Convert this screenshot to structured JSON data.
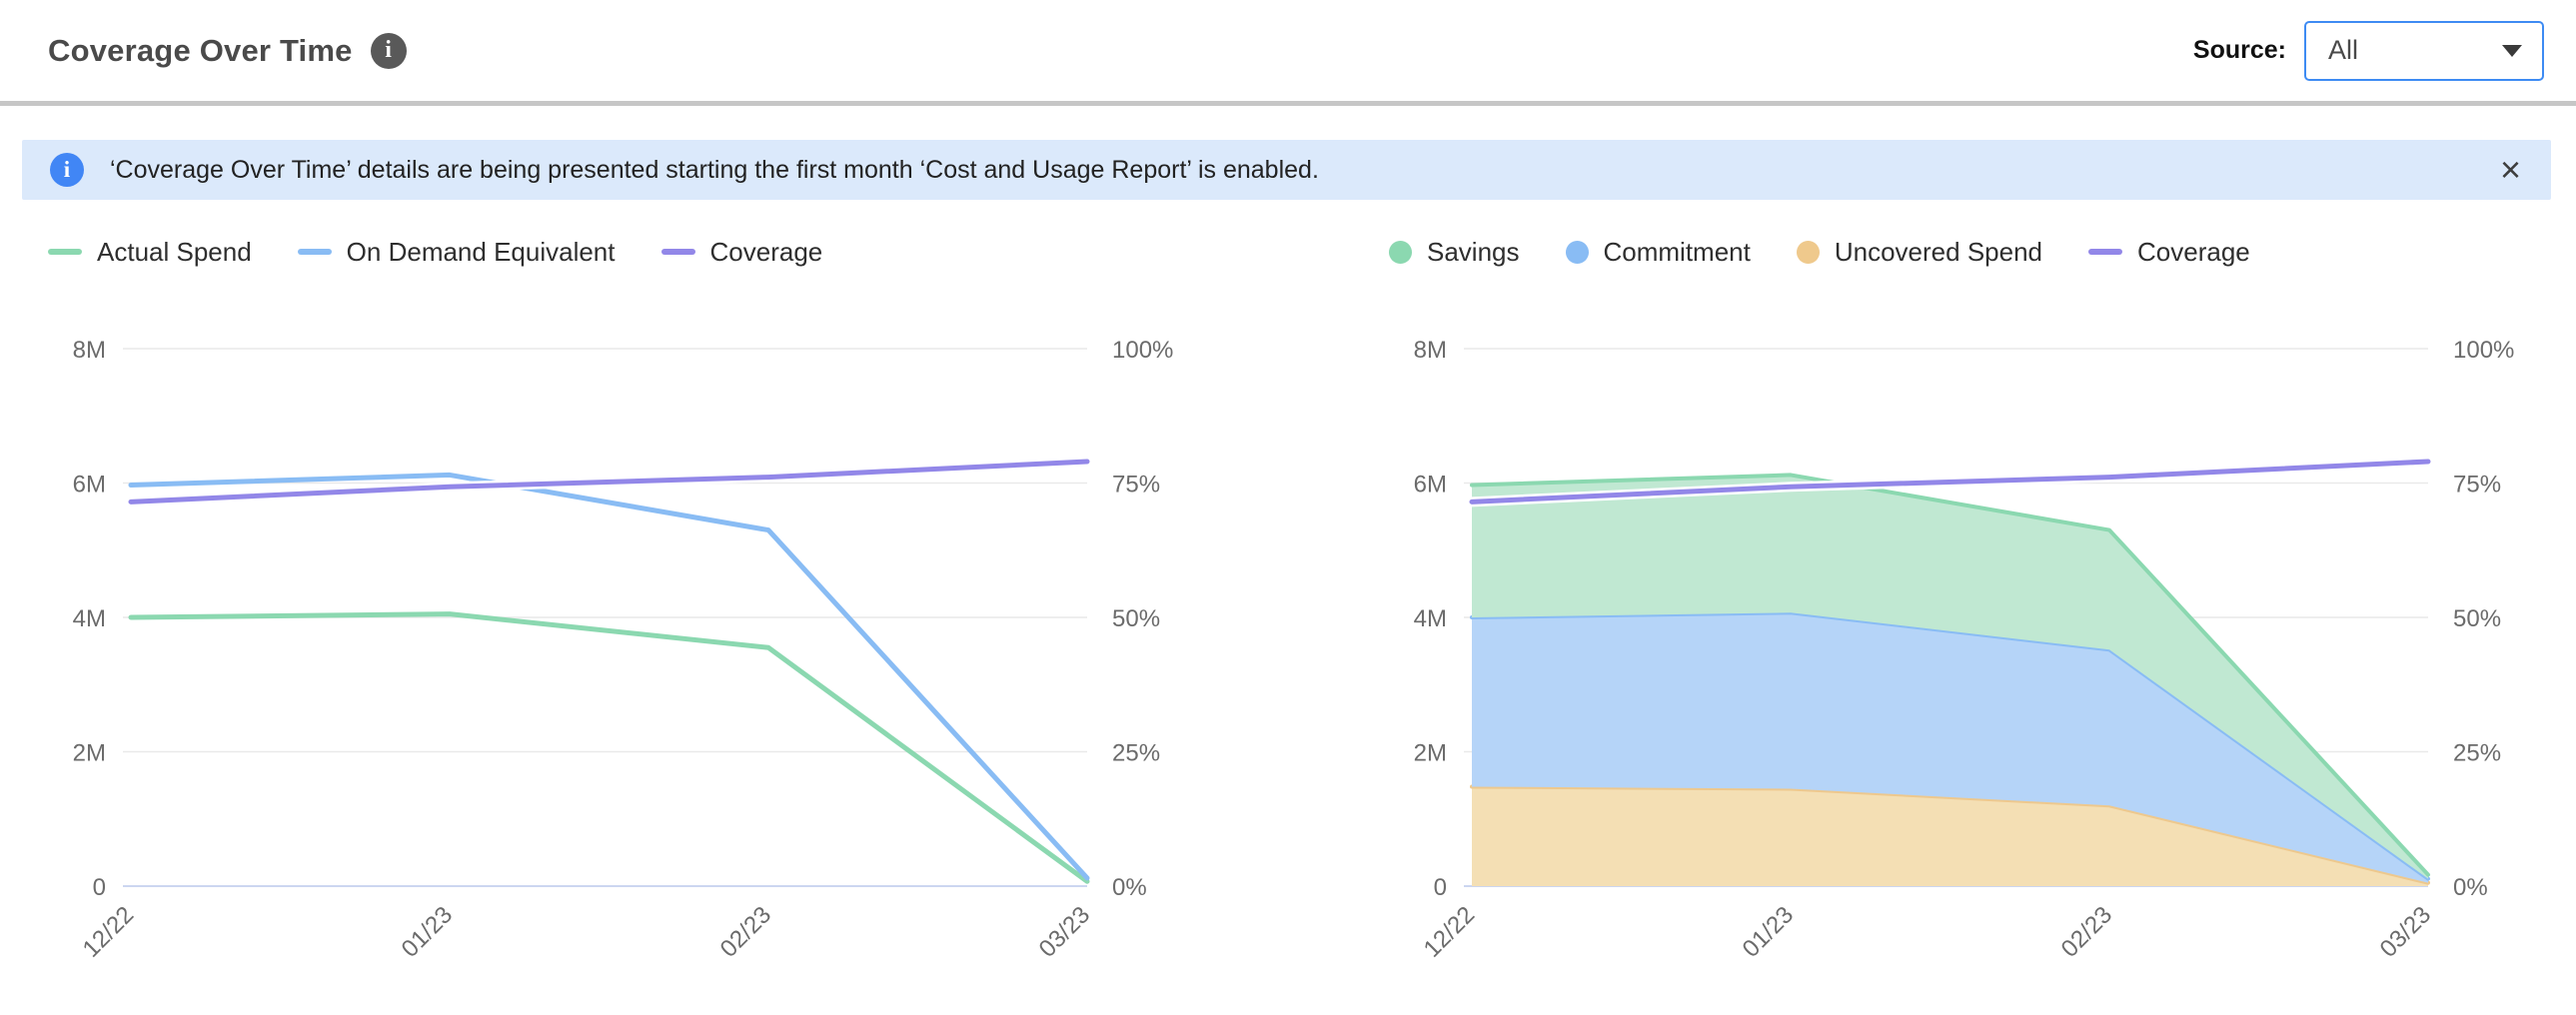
{
  "header": {
    "title": "Coverage Over Time",
    "info_glyph": "i",
    "source_label": "Source:",
    "source_value": "All"
  },
  "banner": {
    "info_glyph": "i",
    "text": "‘Coverage Over Time’ details are being presented starting the first month ‘Cost and Usage Report’ is enabled.",
    "close_glyph": "×"
  },
  "chart_data": [
    {
      "type": "line",
      "title": "Coverage Over Time - spend lines",
      "categories": [
        "12/22",
        "01/23",
        "02/23",
        "03/23"
      ],
      "y_left": {
        "ticks": [
          "0",
          "2M",
          "4M",
          "6M",
          "8M"
        ],
        "max": 8,
        "unit": "M USD"
      },
      "y_right": {
        "ticks": [
          "0%",
          "25%",
          "50%",
          "75%",
          "100%"
        ],
        "max": 100
      },
      "grid": true,
      "legend_position": "top-left",
      "legend": [
        {
          "label": "Actual Spend",
          "marker": "dash",
          "color": "#8BD8B0"
        },
        {
          "label": "On Demand Equivalent",
          "marker": "dash",
          "color": "#89BCF4"
        },
        {
          "label": "Coverage",
          "marker": "dash",
          "color": "#9287E8"
        }
      ],
      "series": [
        {
          "name": "Actual Spend",
          "axis": "left",
          "values": [
            4.0,
            4.05,
            3.55,
            0.07
          ],
          "color": "#8BD8B0"
        },
        {
          "name": "On Demand Equivalent",
          "axis": "left",
          "values": [
            5.97,
            6.12,
            5.3,
            0.12
          ],
          "color": "#89BCF4"
        },
        {
          "name": "Coverage",
          "axis": "right",
          "values": [
            71.5,
            74.3,
            76.1,
            79.0
          ],
          "color": "#9287E8",
          "halo": true
        }
      ]
    },
    {
      "type": "area",
      "title": "Coverage Over Time - stacked spend breakdown",
      "categories": [
        "12/22",
        "01/23",
        "02/23",
        "03/23"
      ],
      "y_left": {
        "ticks": [
          "0",
          "2M",
          "4M",
          "6M",
          "8M"
        ],
        "max": 8,
        "unit": "M USD"
      },
      "y_right": {
        "ticks": [
          "0%",
          "25%",
          "50%",
          "75%",
          "100%"
        ],
        "max": 100
      },
      "grid": true,
      "legend_position": "top-left",
      "legend": [
        {
          "label": "Savings",
          "marker": "circle",
          "color": "#8BD8B0"
        },
        {
          "label": "Commitment",
          "marker": "circle",
          "color": "#89BCF4"
        },
        {
          "label": "Uncovered Spend",
          "marker": "circle",
          "color": "#EFC98C"
        },
        {
          "label": "Coverage",
          "marker": "dash",
          "color": "#9287E8"
        }
      ],
      "series": [
        {
          "name": "Uncovered Spend",
          "stack": true,
          "values": [
            1.48,
            1.45,
            1.2,
            0.05
          ],
          "color": "#EDC88E",
          "fill": "#F4DFB4"
        },
        {
          "name": "Commitment",
          "stack": true,
          "values": [
            2.52,
            2.62,
            2.32,
            0.06
          ],
          "color": "#89BCF4",
          "fill": "#B5D4F8"
        },
        {
          "name": "Savings",
          "stack": true,
          "values": [
            1.97,
            2.05,
            1.78,
            0.06
          ],
          "color": "#8BD8B0",
          "fill": "#C0E8D2"
        },
        {
          "name": "Coverage",
          "axis": "right",
          "values": [
            71.5,
            74.3,
            76.1,
            79.0
          ],
          "color": "#9287E8",
          "halo": true
        }
      ]
    }
  ]
}
